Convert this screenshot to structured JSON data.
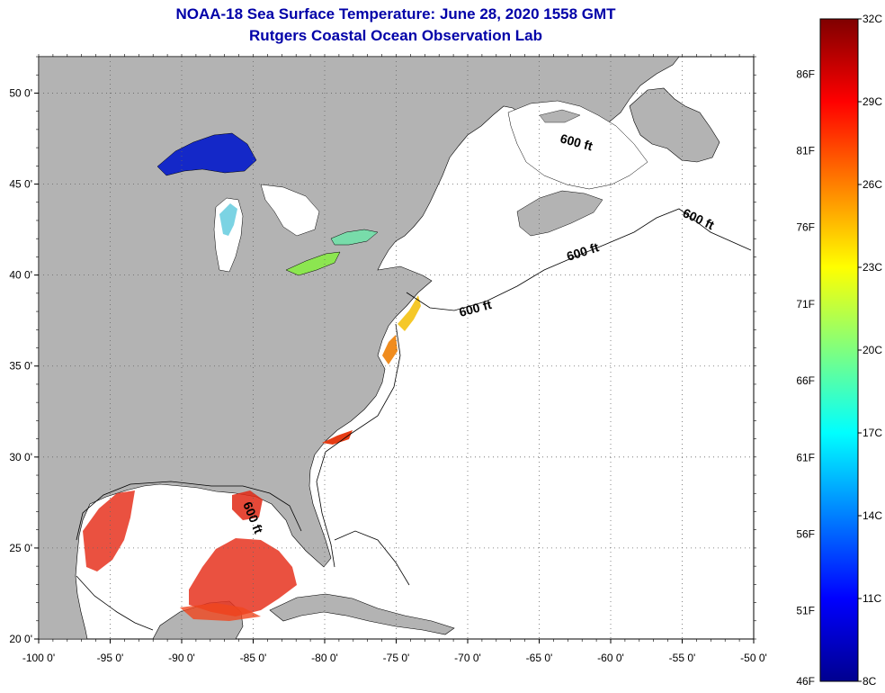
{
  "title": "NOAA-18 Sea Surface Temperature:  June 28, 2020 1558 GMT",
  "subtitle": "Rutgers Coastal Ocean Observation Lab",
  "map": {
    "lon_range": [
      -100,
      -50
    ],
    "lat_range": [
      20,
      52
    ],
    "lon_ticks": [
      "-100 0'",
      "-95 0'",
      "-90 0'",
      "-85 0'",
      "-80 0'",
      "-75 0'",
      "-70 0'",
      "-65 0'",
      "-60 0'",
      "-55 0'",
      "-50 0'"
    ],
    "lat_ticks": [
      "50 0'",
      "45 0'",
      "40 0'",
      "35 0'",
      "30 0'",
      "25 0'",
      "20 0'"
    ],
    "grid": "dotted",
    "land_color": "#b3b3b3",
    "ocean_color": "#ffffff",
    "isobath_labels": [
      "600 ft",
      "600 ft",
      "600 ft",
      "600 ft",
      "600 ft"
    ]
  },
  "colorbar": {
    "celsius": [
      "32C",
      "29C",
      "26C",
      "23C",
      "20C",
      "17C",
      "14C",
      "11C",
      "8C"
    ],
    "fahrenheit": [
      "86F",
      "81F",
      "76F",
      "71F",
      "66F",
      "61F",
      "56F",
      "51F",
      "46F"
    ],
    "range_c": [
      8,
      32
    ],
    "colormap": "jet"
  }
}
